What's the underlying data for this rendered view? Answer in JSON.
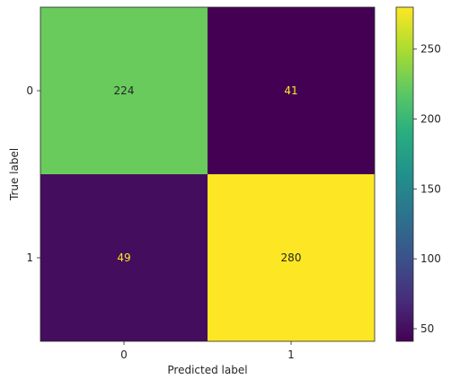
{
  "chart_data": {
    "type": "heatmap",
    "title": "",
    "xlabel": "Predicted label",
    "ylabel": "True label",
    "x_categories": [
      "0",
      "1"
    ],
    "y_categories": [
      "0",
      "1"
    ],
    "values": [
      [
        224,
        41
      ],
      [
        49,
        280
      ]
    ],
    "colormap": "viridis",
    "colorbar": {
      "min": 41,
      "max": 280,
      "ticks": [
        "50",
        "100",
        "150",
        "200",
        "250"
      ]
    },
    "text_colors": {
      "on_light": "#262626",
      "on_dark": "#fde725"
    },
    "grid": false,
    "legend": "colorbar-right"
  }
}
